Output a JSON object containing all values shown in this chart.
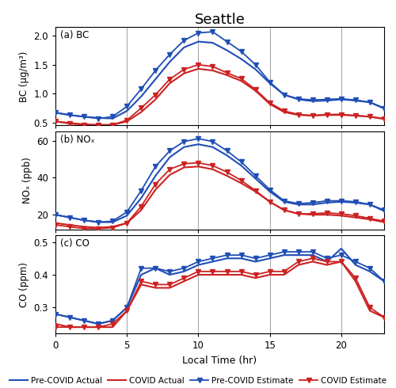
{
  "title": "Seattle",
  "xlabel": "Local Time (hr)",
  "hours": [
    0,
    1,
    2,
    3,
    4,
    5,
    6,
    7,
    8,
    9,
    10,
    11,
    12,
    13,
    14,
    15,
    16,
    17,
    18,
    19,
    20,
    21,
    22,
    23
  ],
  "bc_pre_actual": [
    0.67,
    0.63,
    0.6,
    0.58,
    0.57,
    0.7,
    0.95,
    1.25,
    1.55,
    1.8,
    1.9,
    1.88,
    1.75,
    1.6,
    1.42,
    1.18,
    0.98,
    0.9,
    0.87,
    0.88,
    0.9,
    0.88,
    0.85,
    0.75
  ],
  "bc_pre_estimate": [
    0.67,
    0.63,
    0.6,
    0.57,
    0.6,
    0.78,
    1.08,
    1.4,
    1.68,
    1.92,
    2.05,
    2.07,
    1.9,
    1.73,
    1.5,
    1.2,
    0.98,
    0.91,
    0.89,
    0.9,
    0.91,
    0.89,
    0.85,
    0.74
  ],
  "bc_covid_actual": [
    0.52,
    0.49,
    0.47,
    0.46,
    0.46,
    0.52,
    0.68,
    0.9,
    1.18,
    1.35,
    1.43,
    1.4,
    1.32,
    1.22,
    1.05,
    0.82,
    0.68,
    0.63,
    0.62,
    0.63,
    0.63,
    0.62,
    0.6,
    0.56
  ],
  "bc_covid_estimate": [
    0.52,
    0.48,
    0.46,
    0.45,
    0.46,
    0.54,
    0.75,
    0.98,
    1.25,
    1.42,
    1.5,
    1.47,
    1.36,
    1.26,
    1.07,
    0.84,
    0.7,
    0.64,
    0.62,
    0.64,
    0.64,
    0.62,
    0.6,
    0.57
  ],
  "nox_pre_actual": [
    20.0,
    18.5,
    17.0,
    16.0,
    16.0,
    19.5,
    29.0,
    41.0,
    51.0,
    56.5,
    58.0,
    56.5,
    52.0,
    46.5,
    39.5,
    32.5,
    27.0,
    25.5,
    25.5,
    26.5,
    27.0,
    26.5,
    25.5,
    22.0
  ],
  "nox_pre_estimate": [
    20.0,
    18.5,
    17.0,
    16.0,
    16.5,
    21.5,
    33.0,
    46.0,
    54.5,
    59.5,
    61.0,
    59.5,
    54.5,
    48.5,
    41.0,
    33.5,
    27.5,
    26.0,
    26.5,
    27.5,
    27.5,
    27.0,
    25.5,
    22.5
  ],
  "nox_covid_actual": [
    15.5,
    14.5,
    13.5,
    13.0,
    13.5,
    15.5,
    22.5,
    33.5,
    41.5,
    45.5,
    46.0,
    44.5,
    41.0,
    37.0,
    32.5,
    27.0,
    22.5,
    20.5,
    20.0,
    20.0,
    19.5,
    18.5,
    17.5,
    16.0
  ],
  "nox_covid_estimate": [
    14.5,
    13.5,
    12.5,
    12.5,
    13.0,
    15.5,
    24.5,
    36.5,
    44.5,
    47.5,
    48.0,
    46.5,
    43.0,
    38.5,
    33.0,
    27.0,
    22.5,
    20.5,
    20.5,
    21.0,
    20.5,
    19.5,
    18.0,
    16.5
  ],
  "co_pre_actual": [
    0.28,
    0.27,
    0.26,
    0.25,
    0.26,
    0.3,
    0.4,
    0.42,
    0.4,
    0.41,
    0.43,
    0.44,
    0.45,
    0.45,
    0.44,
    0.45,
    0.46,
    0.46,
    0.46,
    0.44,
    0.48,
    0.43,
    0.41,
    0.38
  ],
  "co_pre_estimate": [
    0.28,
    0.27,
    0.26,
    0.25,
    0.26,
    0.3,
    0.42,
    0.42,
    0.41,
    0.42,
    0.44,
    0.45,
    0.46,
    0.46,
    0.45,
    0.46,
    0.47,
    0.47,
    0.47,
    0.45,
    0.46,
    0.44,
    0.42,
    0.38
  ],
  "co_covid_actual": [
    0.25,
    0.24,
    0.24,
    0.24,
    0.24,
    0.29,
    0.37,
    0.36,
    0.36,
    0.38,
    0.4,
    0.4,
    0.4,
    0.4,
    0.39,
    0.4,
    0.4,
    0.43,
    0.44,
    0.43,
    0.44,
    0.38,
    0.29,
    0.27
  ],
  "co_covid_estimate": [
    0.24,
    0.24,
    0.24,
    0.24,
    0.25,
    0.29,
    0.38,
    0.37,
    0.37,
    0.39,
    0.41,
    0.41,
    0.41,
    0.41,
    0.4,
    0.41,
    0.41,
    0.44,
    0.45,
    0.44,
    0.44,
    0.39,
    0.3,
    0.27
  ],
  "blue_color": "#1f4eb5",
  "red_color": "#cc2222",
  "vline_positions": [
    5,
    10,
    15,
    20
  ],
  "vline_color": "#aaaaaa",
  "bc_ylabel": "BC (μg/m³)",
  "nox_ylabel": "NOₓ (ppb)",
  "co_ylabel": "CO (ppm)",
  "bc_ylim": [
    0.45,
    2.15
  ],
  "nox_ylim": [
    12,
    65
  ],
  "co_ylim": [
    0.22,
    0.52
  ],
  "bc_yticks": [
    0.5,
    1.0,
    1.5,
    2.0
  ],
  "nox_yticks": [
    20,
    40,
    60
  ],
  "co_yticks": [
    0.3,
    0.4,
    0.5
  ],
  "xticks": [
    0,
    5,
    10,
    15,
    20
  ],
  "xlim": [
    0,
    23
  ],
  "marker_size": 5,
  "marker": "v",
  "linewidth": 1.5,
  "marker_linewidth": 1.3,
  "figsize": [
    5.0,
    4.9
  ],
  "dpi": 100
}
